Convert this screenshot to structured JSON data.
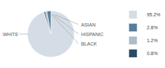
{
  "chart_data": {
    "type": "pie",
    "categories": [
      "WHITE",
      "ASIAN",
      "HISPANIC",
      "BLACK"
    ],
    "values": [
      95.2,
      2.8,
      1.2,
      0.8
    ],
    "value_labels": [
      "95.2%",
      "2.8%",
      "1.2%",
      "0.8%"
    ],
    "colors": [
      "#d4dde6",
      "#5a7d9a",
      "#adbcca",
      "#2b4a60"
    ],
    "legend": "right"
  }
}
